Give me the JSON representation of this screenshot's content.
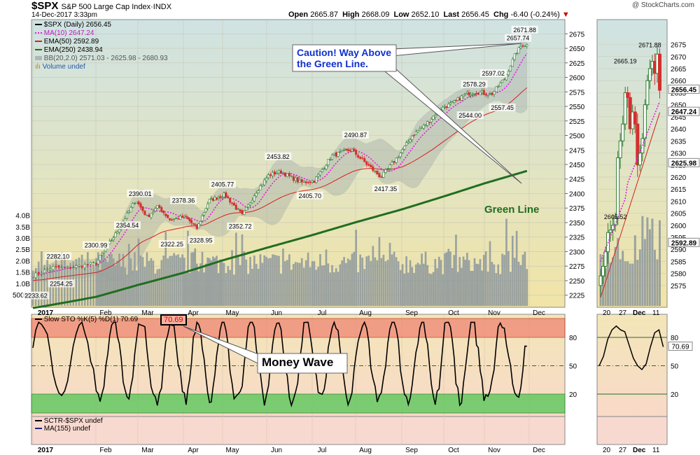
{
  "header": {
    "symbol": "$SPX",
    "name": "S&P 500 Large Cap Index·INDX",
    "brand": "@ StockCharts.com",
    "date": "14-Dec-2017 3:33pm",
    "open_label": "Open",
    "open": "2665.87",
    "high_label": "High",
    "high": "2668.09",
    "low_label": "Low",
    "low": "2652.10",
    "last_label": "Last",
    "last": "2656.45",
    "chg_label": "Chg",
    "chg": "-6.40 (-0.24%)"
  },
  "legend": {
    "price": "$SPX (Daily) 2656.45",
    "ma10": "MA(10) 2647.24",
    "ema50": "EMA(50) 2592.89",
    "ema250": "EMA(250) 2438.94",
    "bb": "BB(20,2.0) 2571.03 - 2625.98 - 2680.93",
    "volume": "Volume undef",
    "sto": "Slow STO %K(5) %D(1) 70.69",
    "sto_box": "70.69",
    "sctr": "SCTR-$SPX undef",
    "ma155": "MA(155) undef"
  },
  "annotations": {
    "caution_line1": "Caution! Way Above",
    "caution_line2": "the Green Line.",
    "green_line": "Green Line",
    "money_wave": "Money Wave"
  },
  "colors": {
    "price_bg_top": "#cfe3e3",
    "price_bg_bottom": "#f2e4a6",
    "up": "#2e7d32",
    "down": "#d32f2f",
    "ma10": "#e020e0",
    "ema50": "#d82020",
    "ema250": "#1f6e1f",
    "bb_fill": "#9aa3a3",
    "volume": "#8c969c",
    "sto_line": "#000000",
    "sto_overbought": "#f08070",
    "sto_oversold": "#5cc85c",
    "caution_text": "#1030d0",
    "green_line_text": "#1f6e1f"
  },
  "chart_data": {
    "type": "candlestick",
    "title": "$SPX S&P 500 Large Cap Index",
    "y_axis_ticks": [
      2225,
      2250,
      2275,
      2300,
      2325,
      2350,
      2375,
      2400,
      2425,
      2450,
      2475,
      2500,
      2525,
      2550,
      2575,
      2600,
      2625,
      2650,
      2675
    ],
    "ylim": [
      2215,
      2685
    ],
    "volume_ticks": [
      "500M",
      "1.0B",
      "1.5B",
      "2.0B",
      "2.5B",
      "3.0B",
      "3.5B",
      "4.0B"
    ],
    "month_labels": [
      "2017",
      "Feb",
      "Mar",
      "Apr",
      "May",
      "Jun",
      "Jul",
      "Aug",
      "Sep",
      "Oct",
      "Nov",
      "Dec"
    ],
    "close_anchors": [
      {
        "m": 0.0,
        "v": 2258
      },
      {
        "m": 0.3,
        "v": 2273
      },
      {
        "m": 0.55,
        "v": 2272
      },
      {
        "m": 1.0,
        "v": 2280
      },
      {
        "m": 1.45,
        "v": 2328
      },
      {
        "m": 1.95,
        "v": 2389
      },
      {
        "m": 2.2,
        "v": 2360
      },
      {
        "m": 2.45,
        "v": 2378
      },
      {
        "m": 2.7,
        "v": 2355
      },
      {
        "m": 3.05,
        "v": 2360
      },
      {
        "m": 3.35,
        "v": 2340
      },
      {
        "m": 3.65,
        "v": 2388
      },
      {
        "m": 4.05,
        "v": 2398
      },
      {
        "m": 4.45,
        "v": 2362
      },
      {
        "m": 4.75,
        "v": 2402
      },
      {
        "m": 5.05,
        "v": 2432
      },
      {
        "m": 5.3,
        "v": 2438
      },
      {
        "m": 5.75,
        "v": 2419
      },
      {
        "m": 6.05,
        "v": 2422
      },
      {
        "m": 6.45,
        "v": 2465
      },
      {
        "m": 6.9,
        "v": 2476
      },
      {
        "m": 7.25,
        "v": 2450
      },
      {
        "m": 7.55,
        "v": 2428
      },
      {
        "m": 7.9,
        "v": 2462
      },
      {
        "m": 8.25,
        "v": 2500
      },
      {
        "m": 8.6,
        "v": 2521
      },
      {
        "m": 8.9,
        "v": 2545
      },
      {
        "m": 9.25,
        "v": 2557
      },
      {
        "m": 9.55,
        "v": 2572
      },
      {
        "m": 9.85,
        "v": 2575
      },
      {
        "m": 10.15,
        "v": 2570
      },
      {
        "m": 10.45,
        "v": 2598
      },
      {
        "m": 10.7,
        "v": 2642
      },
      {
        "m": 10.85,
        "v": 2657
      },
      {
        "m": 10.95,
        "v": 2656
      }
    ],
    "price_labels": [
      {
        "m": 0.05,
        "v": 2233.62,
        "text": "2233.62",
        "pos": "below"
      },
      {
        "m": 0.45,
        "v": 2254.25,
        "text": "2254.25",
        "pos": "below"
      },
      {
        "m": 0.4,
        "v": 2282.1,
        "text": "2282.10",
        "pos": "above"
      },
      {
        "m": 1.0,
        "v": 2300.99,
        "text": "2300.99",
        "pos": "above"
      },
      {
        "m": 1.75,
        "v": 2354.54,
        "text": "2354.54",
        "pos": "below"
      },
      {
        "m": 2.05,
        "v": 2390.01,
        "text": "2390.01",
        "pos": "above"
      },
      {
        "m": 2.75,
        "v": 2322.25,
        "text": "2322.25",
        "pos": "below"
      },
      {
        "m": 3.0,
        "v": 2378.36,
        "text": "2378.36",
        "pos": "above"
      },
      {
        "m": 3.45,
        "v": 2328.95,
        "text": "2328.95",
        "pos": "below"
      },
      {
        "m": 4.0,
        "v": 2405.77,
        "text": "2405.77",
        "pos": "above"
      },
      {
        "m": 4.4,
        "v": 2352.72,
        "text": "2352.72",
        "pos": "below"
      },
      {
        "m": 5.25,
        "v": 2453.82,
        "text": "2453.82",
        "pos": "above"
      },
      {
        "m": 5.95,
        "v": 2405.7,
        "text": "2405.70",
        "pos": "below"
      },
      {
        "m": 7.0,
        "v": 2490.87,
        "text": "2490.87",
        "pos": "above"
      },
      {
        "m": 7.65,
        "v": 2417.35,
        "text": "2417.35",
        "pos": "below"
      },
      {
        "m": 9.65,
        "v": 2544.0,
        "text": "2544.00",
        "pos": "below"
      },
      {
        "m": 9.75,
        "v": 2578.29,
        "text": "2578.29",
        "pos": "above"
      },
      {
        "m": 10.4,
        "v": 2557.45,
        "text": "2557.45",
        "pos": "below"
      },
      {
        "m": 10.2,
        "v": 2597.02,
        "text": "2597.02",
        "pos": "above"
      },
      {
        "m": 10.75,
        "v": 2657.74,
        "text": "2657.74",
        "pos": "above"
      },
      {
        "m": 10.9,
        "v": 2671.88,
        "text": "2671.88",
        "pos": "above"
      }
    ],
    "ema250_start": 2203,
    "ema250_end": 2438.94,
    "sto_ticks": [
      20,
      50,
      80
    ],
    "sto_last": 70.69,
    "zoom": {
      "ylim": [
        2568,
        2683
      ],
      "y_ticks": [
        2575,
        2580,
        2585,
        2590,
        2595,
        2600,
        2605,
        2610,
        2615,
        2620,
        2625,
        2630,
        2635,
        2640,
        2645,
        2650,
        2655,
        2660,
        2665,
        2670,
        2675
      ],
      "x_labels": [
        "20",
        "27",
        "Dec",
        "11"
      ],
      "labels": [
        {
          "d": 6,
          "v": 2605.52,
          "text": "2605.52",
          "pos": "below"
        },
        {
          "d": 10,
          "v": 2665.19,
          "text": "2665.19",
          "pos": "above"
        },
        {
          "d": 20,
          "v": 2671.88,
          "text": "2671.88",
          "pos": "above"
        }
      ],
      "flags": [
        {
          "v": 2656.45,
          "text": "2656.45"
        },
        {
          "v": 2647.24,
          "text": "2647.24"
        },
        {
          "v": 2625.98,
          "text": "2625.98"
        },
        {
          "v": 2592.89,
          "text": "2592.89"
        }
      ],
      "sto_flag": "70.69"
    }
  }
}
